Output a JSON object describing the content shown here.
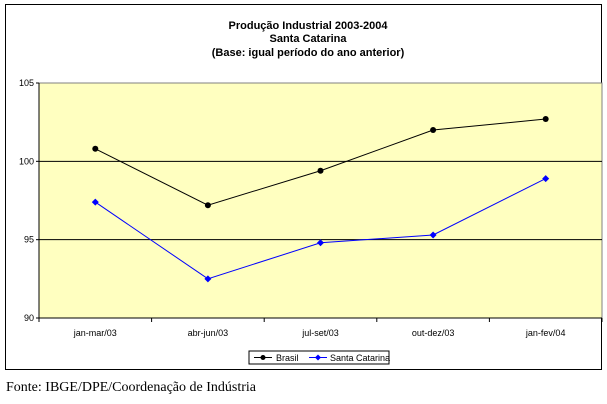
{
  "chart_data": {
    "type": "line",
    "title": [
      "Produção Industrial 2003-2004",
      "Santa Catarina",
      "(Base: igual período do ano anterior)"
    ],
    "categories": [
      "jan-mar/03",
      "abr-jun/03",
      "jul-set/03",
      "out-dez/03",
      "jan-fev/04"
    ],
    "series": [
      {
        "name": "Brasil",
        "color": "#000000",
        "marker": "circle",
        "values": [
          100.8,
          97.2,
          99.4,
          102.0,
          102.7
        ]
      },
      {
        "name": "Santa Catarina",
        "color": "#0000ff",
        "marker": "diamond",
        "values": [
          97.4,
          92.5,
          94.8,
          95.3,
          98.9
        ]
      }
    ],
    "y_ticks": [
      "90",
      "95",
      "100",
      "105"
    ],
    "ylim": [
      90,
      105
    ],
    "plot_background": "#ffffc0",
    "gridlines": [
      95,
      100
    ],
    "legend_position": "bottom"
  },
  "footer": {
    "source": "Fonte: IBGE/DPE/Coordenação de Indústria"
  }
}
